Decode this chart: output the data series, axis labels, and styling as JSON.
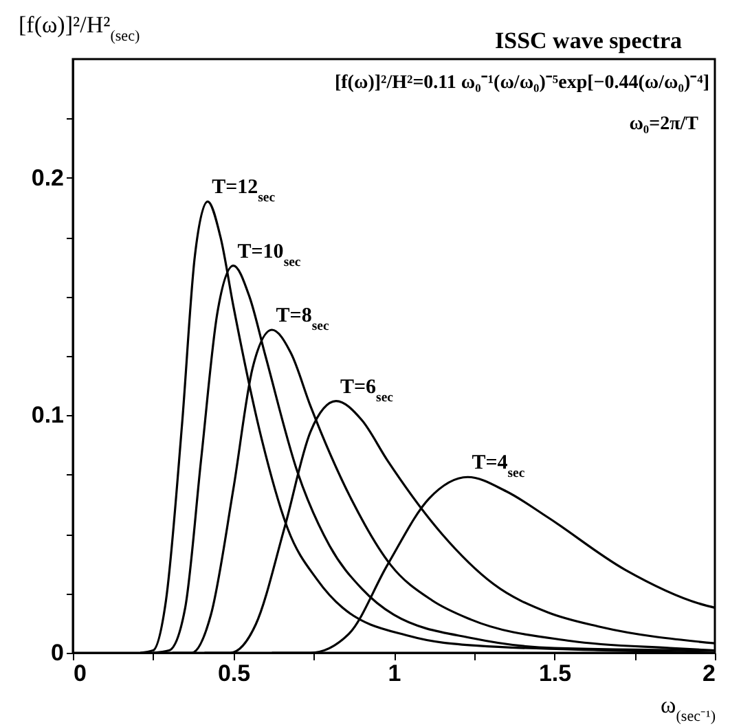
{
  "chart_data": {
    "type": "line",
    "title": "ISSC wave spectra",
    "xlabel": "ω$_{(sec⁻¹)}$",
    "ylabel": "[f(ω)]²/H²$_{(sec)}$",
    "annotations": [
      "[f(ω)]²/H²=0.11 ω₀⁻¹(ω/ω₀)⁻⁵exp[−0.44(ω/ω₀)⁻⁴]",
      "ω₀=2π/T"
    ],
    "xlim": [
      0,
      2
    ],
    "ylim": [
      0,
      0.25
    ],
    "xticks": [
      0,
      {
        "value": 0.25,
        "label": null
      },
      0.5,
      {
        "value": 0.75,
        "label": null
      },
      1,
      {
        "value": 1.25,
        "label": null
      },
      1.5,
      {
        "value": 1.75,
        "label": null
      },
      2
    ],
    "yticks": [
      0,
      {
        "value": 0.025,
        "label": null
      },
      {
        "value": 0.05,
        "label": null
      },
      {
        "value": 0.075,
        "label": null
      },
      0.1,
      {
        "value": 0.125,
        "label": null
      },
      {
        "value": 0.15,
        "label": null
      },
      {
        "value": 0.175,
        "label": null
      },
      0.2,
      {
        "value": 0.225,
        "label": null
      }
    ],
    "grid": false,
    "legend": false,
    "marker": "none",
    "line_style": "solid",
    "series": [
      {
        "name": "T=12$_{sec}$",
        "color": "#000000",
        "x": [
          0.21,
          0.25,
          0.29,
          0.34,
          0.38,
          0.42,
          0.46,
          0.5,
          0.59,
          0.67,
          0.76,
          0.84,
          1.05,
          1.26,
          1.68,
          2.0
        ],
        "values": [
          0,
          0.001,
          0.022,
          0.096,
          0.167,
          0.19,
          0.175,
          0.146,
          0.089,
          0.052,
          0.031,
          0.019,
          0.007,
          0.003,
          0.001,
          0
        ]
      },
      {
        "name": "T=10$_{sec}$",
        "color": "#000000",
        "x": [
          0.25,
          0.3,
          0.35,
          0.4,
          0.45,
          0.5,
          0.55,
          0.6,
          0.7,
          0.8,
          0.9,
          1.0,
          1.25,
          1.5,
          2.0
        ],
        "values": [
          0,
          0.001,
          0.019,
          0.082,
          0.143,
          0.163,
          0.15,
          0.125,
          0.076,
          0.045,
          0.027,
          0.016,
          0.006,
          0.002,
          0.001
        ]
      },
      {
        "name": "T=8$_{sec}$",
        "color": "#000000",
        "x": [
          0.31,
          0.37,
          0.43,
          0.5,
          0.56,
          0.62,
          0.68,
          0.74,
          0.87,
          0.99,
          1.12,
          1.24,
          1.55,
          1.86,
          2.0
        ],
        "values": [
          0,
          0.0,
          0.016,
          0.069,
          0.12,
          0.136,
          0.126,
          0.104,
          0.064,
          0.037,
          0.022,
          0.014,
          0.005,
          0.002,
          0.001
        ]
      },
      {
        "name": "T=6$_{sec}$",
        "color": "#000000",
        "x": [
          0.41,
          0.49,
          0.57,
          0.66,
          0.74,
          0.82,
          0.9,
          0.98,
          1.15,
          1.31,
          1.48,
          1.64,
          2.0
        ],
        "values": [
          0,
          0.0,
          0.012,
          0.053,
          0.093,
          0.106,
          0.098,
          0.081,
          0.05,
          0.029,
          0.017,
          0.011,
          0.004
        ]
      },
      {
        "name": "T=4$_{sec}$",
        "color": "#000000",
        "x": [
          0.62,
          0.74,
          0.86,
          0.98,
          1.11,
          1.23,
          1.35,
          1.48,
          1.72,
          1.97,
          2.0
        ],
        "values": [
          0,
          0.0,
          0.008,
          0.037,
          0.065,
          0.074,
          0.068,
          0.057,
          0.035,
          0.02,
          0.019
        ]
      }
    ]
  }
}
